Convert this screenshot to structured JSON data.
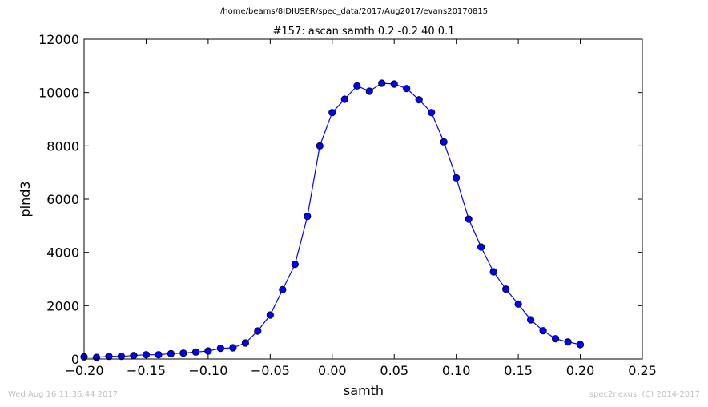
{
  "header": {
    "file_path": "/home/beams/8IDIUSER/spec_data/2017/Aug2017/evans20170815"
  },
  "footer": {
    "timestamp": "Wed Aug 16 11:36:44 2017",
    "credit": "spec2nexus, (C) 2014-2017"
  },
  "chart_data": {
    "type": "line",
    "title": "#157: ascan  samth 0.2 -0.2  40 0.1",
    "xlabel": "samth",
    "ylabel": "pind3",
    "xlim": [
      -0.2,
      0.25
    ],
    "ylim": [
      0,
      12000
    ],
    "xticks": [
      "−0.20",
      "−0.15",
      "−0.10",
      "−0.05",
      "0.00",
      "0.05",
      "0.10",
      "0.15",
      "0.20",
      "0.25"
    ],
    "xtick_values": [
      -0.2,
      -0.15,
      -0.1,
      -0.05,
      0.0,
      0.05,
      0.1,
      0.15,
      0.2,
      0.25
    ],
    "yticks": [
      "0",
      "2000",
      "4000",
      "6000",
      "8000",
      "10000",
      "12000"
    ],
    "ytick_values": [
      0,
      2000,
      4000,
      6000,
      8000,
      10000,
      12000
    ],
    "grid": false,
    "line_color": "#0000ff",
    "marker": "circle",
    "series": [
      {
        "x": [
          -0.2,
          -0.19,
          -0.18,
          -0.17,
          -0.16,
          -0.15,
          -0.14,
          -0.13,
          -0.12,
          -0.11,
          -0.1,
          -0.09,
          -0.08,
          -0.07,
          -0.06,
          -0.05,
          -0.04,
          -0.03,
          -0.02,
          -0.01,
          0.0,
          0.01,
          0.02,
          0.03,
          0.04,
          0.05,
          0.06,
          0.07,
          0.08,
          0.09,
          0.1,
          0.11,
          0.12,
          0.13,
          0.14,
          0.15,
          0.16,
          0.17,
          0.18,
          0.19,
          0.2
        ],
        "y": [
          80,
          60,
          100,
          100,
          130,
          160,
          160,
          200,
          220,
          260,
          300,
          400,
          420,
          600,
          1050,
          1650,
          2600,
          3550,
          5350,
          8000,
          9250,
          9750,
          10250,
          10050,
          10350,
          10320,
          10150,
          9730,
          9250,
          8150,
          6800,
          5250,
          4200,
          3270,
          2620,
          2060,
          1470,
          1060,
          760,
          640,
          540
        ]
      }
    ]
  }
}
